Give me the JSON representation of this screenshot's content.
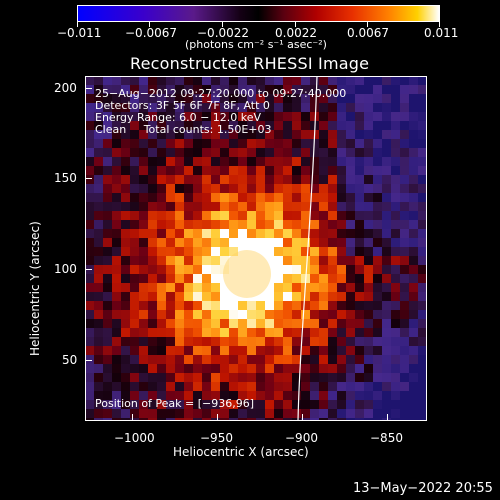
{
  "colorbar": {
    "tick_labels": [
      "−0.011",
      "−0.0067",
      "−0.0022",
      "0.0022",
      "0.0067",
      "0.011"
    ],
    "units_label": "(photons cm⁻² s⁻¹ asec⁻²)"
  },
  "image": {
    "title": "Reconstructed RHESSI Image",
    "info_lines": [
      "25−Aug−2012 09:27:20.000 to 09:27:40.000",
      "Detectors: 3F 5F 6F 7F 8F, Att 0",
      "Energy Range: 6.0 − 12.0 keV",
      "Clean     Total counts: 1.50E+03"
    ],
    "peak_label": "Position of Peak = [−936,96]",
    "x_ticks": [
      "−1000",
      "−950",
      "−900",
      "−850"
    ],
    "y_ticks": [
      "200",
      "150",
      "100",
      "50"
    ],
    "xlabel": "Heliocentric X (arcsec)",
    "ylabel": "Heliocentric Y (arcsec)"
  },
  "footer": {
    "timestamp": "13−May−2022 20:55"
  },
  "colors": {
    "background": "#000000",
    "foreground": "#ffffff",
    "limb_line": "#ffffff"
  }
}
